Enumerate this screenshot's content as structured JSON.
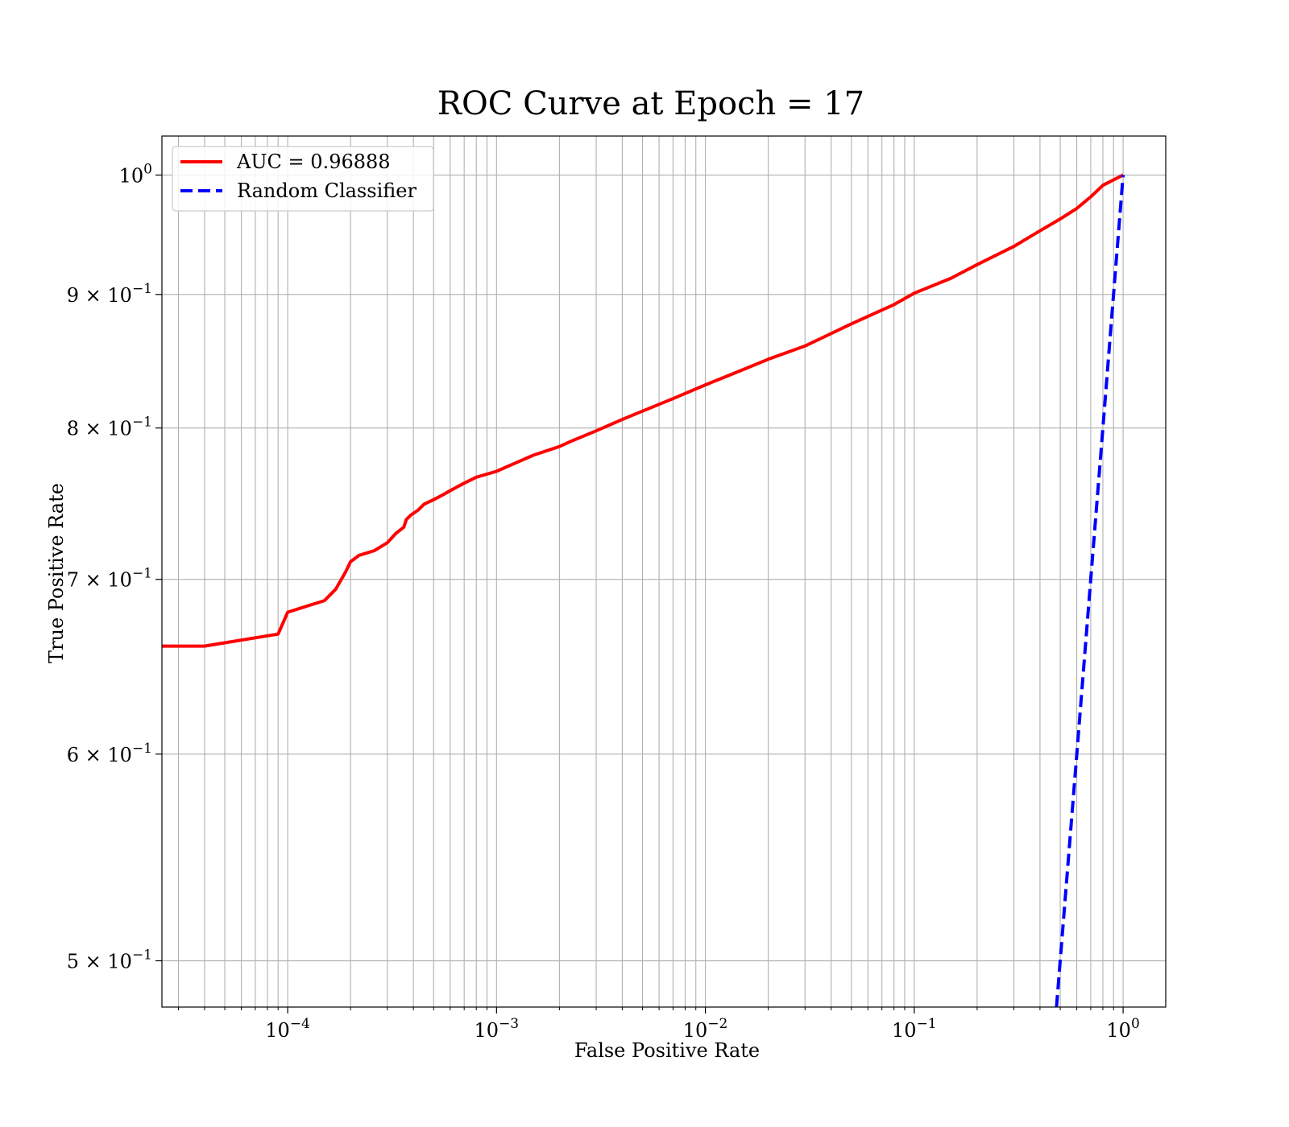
{
  "chart_data": {
    "type": "line",
    "title": "ROC Curve at Epoch = 17",
    "xlabel": "False Positive Rate",
    "ylabel": "True Positive Rate",
    "xscale": "log",
    "yscale": "log",
    "xlim": [
      2.5e-05,
      1.6
    ],
    "ylim": [
      0.48,
      1.035
    ],
    "grid": "both-major-and-minor-x, major-y",
    "legend_position": "top-left",
    "x_ticks": [
      {
        "value": 0.0001,
        "base": "10",
        "exp": "−4"
      },
      {
        "value": 0.001,
        "base": "10",
        "exp": "−3"
      },
      {
        "value": 0.01,
        "base": "10",
        "exp": "−2"
      },
      {
        "value": 0.1,
        "base": "10",
        "exp": "−1"
      },
      {
        "value": 1,
        "base": "10",
        "exp": "0"
      }
    ],
    "y_ticks": [
      {
        "value": 1.0,
        "mant": "",
        "base": "10",
        "exp": "0"
      },
      {
        "value": 0.9,
        "mant": "9 × ",
        "base": "10",
        "exp": "−1"
      },
      {
        "value": 0.8,
        "mant": "8 × ",
        "base": "10",
        "exp": "−1"
      },
      {
        "value": 0.7,
        "mant": "7 × ",
        "base": "10",
        "exp": "−1"
      },
      {
        "value": 0.6,
        "mant": "6 × ",
        "base": "10",
        "exp": "−1"
      },
      {
        "value": 0.5,
        "mant": "5 × ",
        "base": "10",
        "exp": "−1"
      }
    ],
    "series": [
      {
        "name": "AUC = 0.96888",
        "color": "#ff0000",
        "dash": "solid",
        "x": [
          2.5e-05,
          4e-05,
          9e-05,
          0.0001,
          0.00015,
          0.00017,
          0.00019,
          0.0002,
          0.00022,
          0.00026,
          0.0003,
          0.00033,
          0.00036,
          0.00037,
          0.00039,
          0.00042,
          0.00045,
          0.0005,
          0.00055,
          0.0006,
          0.0007,
          0.0008,
          0.001,
          0.0012,
          0.0015,
          0.002,
          0.0023,
          0.003,
          0.004,
          0.005,
          0.007,
          0.01,
          0.015,
          0.02,
          0.03,
          0.05,
          0.08,
          0.1,
          0.15,
          0.2,
          0.3,
          0.4,
          0.5,
          0.6,
          0.7,
          0.8,
          1.0
        ],
        "y": [
          0.66,
          0.66,
          0.667,
          0.68,
          0.687,
          0.694,
          0.705,
          0.711,
          0.715,
          0.718,
          0.723,
          0.729,
          0.733,
          0.738,
          0.741,
          0.744,
          0.748,
          0.751,
          0.754,
          0.757,
          0.762,
          0.766,
          0.77,
          0.775,
          0.781,
          0.787,
          0.791,
          0.798,
          0.806,
          0.812,
          0.821,
          0.831,
          0.842,
          0.85,
          0.86,
          0.877,
          0.892,
          0.901,
          0.913,
          0.924,
          0.939,
          0.952,
          0.962,
          0.971,
          0.981,
          0.991,
          1.0
        ]
      },
      {
        "name": "Random Classifier",
        "color": "#0000ff",
        "dash": "dashed",
        "x": [
          0.48,
          0.5,
          0.6,
          0.7,
          0.8,
          0.9,
          1.0
        ],
        "y": [
          0.48,
          0.5,
          0.6,
          0.7,
          0.8,
          0.9,
          1.0
        ]
      }
    ]
  }
}
